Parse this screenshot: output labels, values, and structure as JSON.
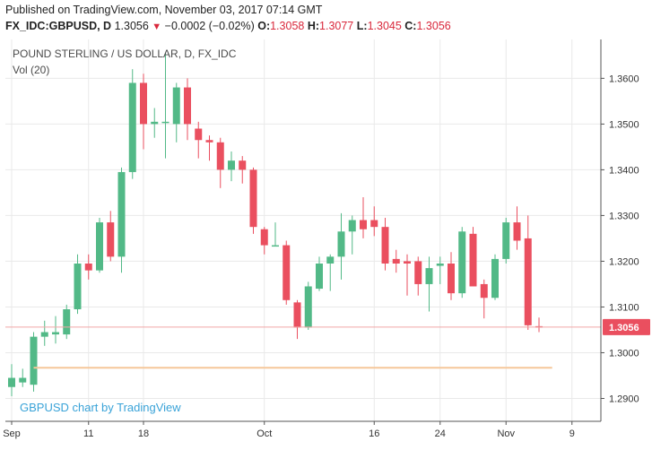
{
  "header": {
    "published": "Published on TradingView.com, November 03, 2017 07:14 GMT",
    "symbol": "FX_IDC:GBPUSD, D",
    "last": "1.3056",
    "change": "−0.0002 (−0.02%)",
    "open_label": "O:",
    "open": "1.3058",
    "high_label": "H:",
    "high": "1.3077",
    "low_label": "L:",
    "low": "1.3045",
    "close_label": "C:",
    "close": "1.3056"
  },
  "overlay": {
    "title": "POUND STERLING / US DOLLAR, D, FX_IDC",
    "volume": "Vol (20)",
    "watermark": "GBPUSD chart by TradingView"
  },
  "colors": {
    "up": "#52b987",
    "down": "#ea4f5f",
    "price_line": "#f0a6a6",
    "ma_line": "#f6c79a",
    "badge": "#ea4f5f",
    "grid": "#e9e9e9"
  },
  "chart_data": {
    "type": "candlestick",
    "title": "POUND STERLING / US DOLLAR, D, FX_IDC",
    "ylim": [
      1.285,
      1.3685
    ],
    "y_ticks": [
      "1.2900",
      "1.3000",
      "1.3100",
      "1.3200",
      "1.3300",
      "1.3400",
      "1.3500",
      "1.3600"
    ],
    "x_ticks": [
      {
        "label": "Sep",
        "index": 0
      },
      {
        "label": "11",
        "index": 7
      },
      {
        "label": "18",
        "index": 12
      },
      {
        "label": "Oct",
        "index": 23
      },
      {
        "label": "16",
        "index": 33
      },
      {
        "label": "24",
        "index": 39
      },
      {
        "label": "Nov",
        "index": 45
      },
      {
        "label": "9",
        "index": 51
      }
    ],
    "last_price": 1.3056,
    "last_price_label": "1.3056",
    "volume_ma_level": 1.2967,
    "grid": true,
    "candles": [
      {
        "i": 0,
        "o": 1.2925,
        "h": 1.2975,
        "l": 1.2905,
        "c": 1.2945
      },
      {
        "i": 1,
        "o": 1.2935,
        "h": 1.2965,
        "l": 1.2925,
        "c": 1.2945
      },
      {
        "i": 2,
        "o": 1.293,
        "h": 1.3045,
        "l": 1.2915,
        "c": 1.3035
      },
      {
        "i": 3,
        "o": 1.3035,
        "h": 1.307,
        "l": 1.3015,
        "c": 1.3045
      },
      {
        "i": 4,
        "o": 1.304,
        "h": 1.308,
        "l": 1.302,
        "c": 1.3045
      },
      {
        "i": 5,
        "o": 1.304,
        "h": 1.3105,
        "l": 1.303,
        "c": 1.3095
      },
      {
        "i": 6,
        "o": 1.3095,
        "h": 1.3215,
        "l": 1.3085,
        "c": 1.3195
      },
      {
        "i": 7,
        "o": 1.3195,
        "h": 1.3215,
        "l": 1.316,
        "c": 1.318
      },
      {
        "i": 8,
        "o": 1.318,
        "h": 1.3295,
        "l": 1.3175,
        "c": 1.3285
      },
      {
        "i": 9,
        "o": 1.3285,
        "h": 1.331,
        "l": 1.32,
        "c": 1.321
      },
      {
        "i": 10,
        "o": 1.321,
        "h": 1.3405,
        "l": 1.3175,
        "c": 1.3395
      },
      {
        "i": 11,
        "o": 1.3395,
        "h": 1.362,
        "l": 1.338,
        "c": 1.359
      },
      {
        "i": 12,
        "o": 1.359,
        "h": 1.361,
        "l": 1.3445,
        "c": 1.35
      },
      {
        "i": 13,
        "o": 1.35,
        "h": 1.3535,
        "l": 1.347,
        "c": 1.3505
      },
      {
        "i": 14,
        "o": 1.3505,
        "h": 1.3655,
        "l": 1.3425,
        "c": 1.3505
      },
      {
        "i": 15,
        "o": 1.35,
        "h": 1.359,
        "l": 1.346,
        "c": 1.358
      },
      {
        "i": 16,
        "o": 1.358,
        "h": 1.36,
        "l": 1.3465,
        "c": 1.35
      },
      {
        "i": 17,
        "o": 1.349,
        "h": 1.3505,
        "l": 1.3425,
        "c": 1.3465
      },
      {
        "i": 18,
        "o": 1.3465,
        "h": 1.3475,
        "l": 1.342,
        "c": 1.346
      },
      {
        "i": 19,
        "o": 1.346,
        "h": 1.347,
        "l": 1.336,
        "c": 1.34
      },
      {
        "i": 20,
        "o": 1.34,
        "h": 1.344,
        "l": 1.3375,
        "c": 1.342
      },
      {
        "i": 21,
        "o": 1.342,
        "h": 1.343,
        "l": 1.337,
        "c": 1.34
      },
      {
        "i": 22,
        "o": 1.34,
        "h": 1.3405,
        "l": 1.326,
        "c": 1.3275
      },
      {
        "i": 23,
        "o": 1.327,
        "h": 1.3275,
        "l": 1.3215,
        "c": 1.3235
      },
      {
        "i": 24,
        "o": 1.3235,
        "h": 1.3285,
        "l": 1.3235,
        "c": 1.3235
      },
      {
        "i": 25,
        "o": 1.3235,
        "h": 1.3245,
        "l": 1.3105,
        "c": 1.3115
      },
      {
        "i": 26,
        "o": 1.311,
        "h": 1.3115,
        "l": 1.303,
        "c": 1.3055
      },
      {
        "i": 27,
        "o": 1.3055,
        "h": 1.3155,
        "l": 1.305,
        "c": 1.3145
      },
      {
        "i": 28,
        "o": 1.314,
        "h": 1.321,
        "l": 1.3135,
        "c": 1.3195
      },
      {
        "i": 29,
        "o": 1.3195,
        "h": 1.3215,
        "l": 1.3135,
        "c": 1.321
      },
      {
        "i": 30,
        "o": 1.321,
        "h": 1.3305,
        "l": 1.316,
        "c": 1.3265
      },
      {
        "i": 31,
        "o": 1.3265,
        "h": 1.33,
        "l": 1.3215,
        "c": 1.329
      },
      {
        "i": 32,
        "o": 1.329,
        "h": 1.334,
        "l": 1.325,
        "c": 1.327
      },
      {
        "i": 33,
        "o": 1.329,
        "h": 1.332,
        "l": 1.3255,
        "c": 1.3275
      },
      {
        "i": 34,
        "o": 1.3275,
        "h": 1.3295,
        "l": 1.318,
        "c": 1.3195
      },
      {
        "i": 35,
        "o": 1.3205,
        "h": 1.3225,
        "l": 1.3175,
        "c": 1.3195
      },
      {
        "i": 36,
        "o": 1.32,
        "h": 1.3215,
        "l": 1.3125,
        "c": 1.3195
      },
      {
        "i": 37,
        "o": 1.32,
        "h": 1.321,
        "l": 1.3125,
        "c": 1.315
      },
      {
        "i": 38,
        "o": 1.315,
        "h": 1.321,
        "l": 1.309,
        "c": 1.3185
      },
      {
        "i": 39,
        "o": 1.319,
        "h": 1.321,
        "l": 1.315,
        "c": 1.3195
      },
      {
        "i": 40,
        "o": 1.3195,
        "h": 1.322,
        "l": 1.3115,
        "c": 1.313
      },
      {
        "i": 41,
        "o": 1.313,
        "h": 1.3275,
        "l": 1.312,
        "c": 1.3265
      },
      {
        "i": 42,
        "o": 1.326,
        "h": 1.3275,
        "l": 1.3145,
        "c": 1.3145
      },
      {
        "i": 43,
        "o": 1.315,
        "h": 1.316,
        "l": 1.3075,
        "c": 1.312
      },
      {
        "i": 44,
        "o": 1.312,
        "h": 1.3215,
        "l": 1.3115,
        "c": 1.3205
      },
      {
        "i": 45,
        "o": 1.3205,
        "h": 1.3295,
        "l": 1.3195,
        "c": 1.3285
      },
      {
        "i": 46,
        "o": 1.3285,
        "h": 1.332,
        "l": 1.3225,
        "c": 1.3245
      },
      {
        "i": 47,
        "o": 1.325,
        "h": 1.33,
        "l": 1.305,
        "c": 1.306
      },
      {
        "i": 48,
        "o": 1.3058,
        "h": 1.3077,
        "l": 1.3045,
        "c": 1.3056
      }
    ]
  }
}
